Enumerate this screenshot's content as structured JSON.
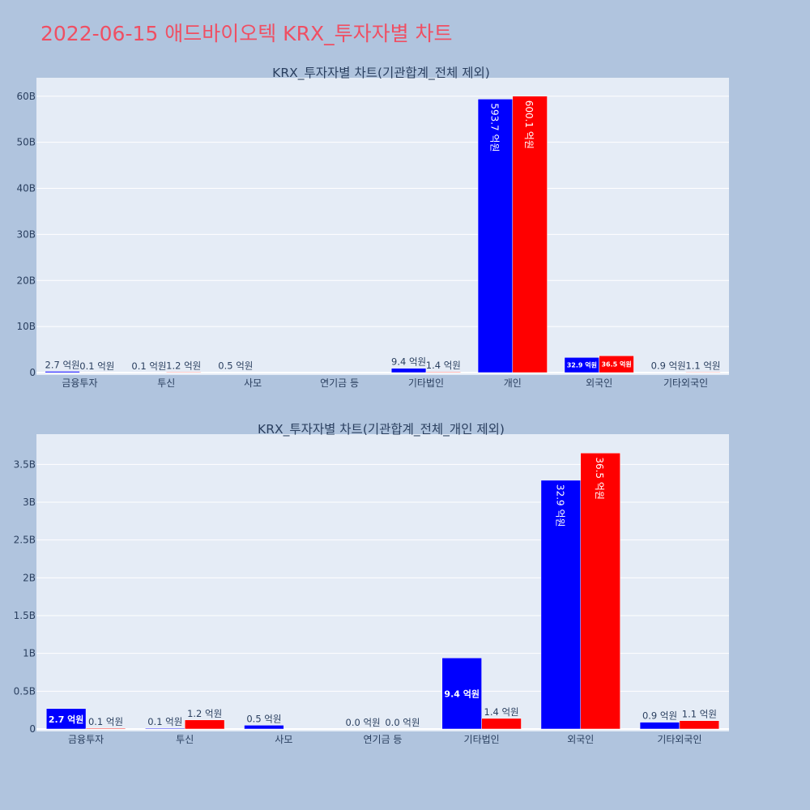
{
  "title": "2022-06-15 애드바이오텍 KRX_투자자별 차트",
  "colors": {
    "page_bg": "#b0c4de",
    "plot_bg": "#e5ecf6",
    "title": "#ef4f63",
    "series_blue": "#0000ff",
    "series_red": "#ff0000"
  },
  "chart_data": [
    {
      "type": "bar",
      "title": "KRX_투자자별 차트(기관합계_전체 제외)",
      "categories": [
        "금융투자",
        "투신",
        "사모",
        "연기금 등",
        "기타법인",
        "개인",
        "외국인",
        "기타외국인"
      ],
      "series": [
        {
          "color": "#0000ff",
          "values": [
            0.27,
            0.01,
            0.05,
            0.0,
            0.94,
            59.37,
            3.29,
            0.09
          ],
          "labels": [
            "2.7 억원",
            "0.1 억원",
            "0.5 억원",
            "",
            "9.4 억원",
            "593.7 억원",
            "32.9 억원",
            "0.9 억원"
          ]
        },
        {
          "color": "#ff0000",
          "values": [
            0.01,
            0.12,
            0.0,
            0.0,
            0.14,
            60.01,
            3.65,
            0.11
          ],
          "labels": [
            "0.1 억원",
            "1.2 억원",
            "",
            "",
            "1.4 억원",
            "600.1 억원",
            "36.5 억원",
            "1.1 억원"
          ]
        }
      ],
      "y_unit": "B",
      "ylim": [
        0,
        64
      ],
      "yticks": [
        0,
        10,
        20,
        30,
        40,
        50,
        60
      ],
      "ytick_labels": [
        "0",
        "10B",
        "20B",
        "30B",
        "40B",
        "50B",
        "60B"
      ],
      "grid": true,
      "legend": "none"
    },
    {
      "type": "bar",
      "title": "KRX_투자자별 차트(기관합계_전체_개인 제외)",
      "categories": [
        "금융투자",
        "투신",
        "사모",
        "연기금 등",
        "기타법인",
        "외국인",
        "기타외국인"
      ],
      "series": [
        {
          "color": "#0000ff",
          "values": [
            0.27,
            0.01,
            0.05,
            0.0,
            0.94,
            3.29,
            0.09
          ],
          "labels": [
            "2.7 억원",
            "0.1 억원",
            "0.5 억원",
            "0.0 억원",
            "9.4 억원",
            "32.9 억원",
            "0.9 억원"
          ]
        },
        {
          "color": "#ff0000",
          "values": [
            0.01,
            0.12,
            0.0,
            0.0,
            0.14,
            3.65,
            0.11
          ],
          "labels": [
            "0.1 억원",
            "1.2 억원",
            "",
            "0.0 억원",
            "1.4 억원",
            "36.5 억원",
            "1.1 억원"
          ]
        }
      ],
      "y_unit": "B",
      "ylim": [
        0,
        3.9
      ],
      "yticks": [
        0,
        0.5,
        1,
        1.5,
        2,
        2.5,
        3,
        3.5
      ],
      "ytick_labels": [
        "0",
        "0.5B",
        "1B",
        "1.5B",
        "2B",
        "2.5B",
        "3B",
        "3.5B"
      ],
      "grid": true,
      "legend": "none"
    }
  ]
}
